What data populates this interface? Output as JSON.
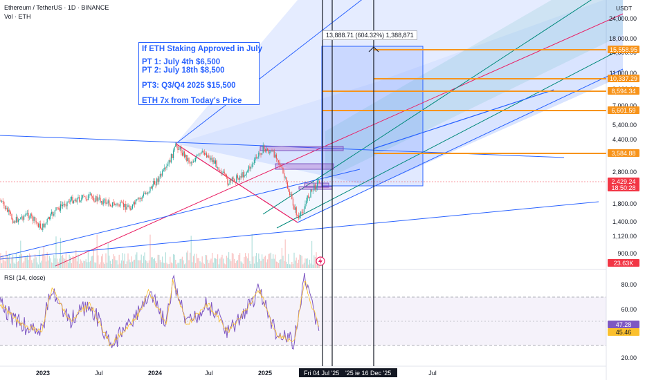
{
  "header": {
    "symbol": "Ethereum / TetherUS · 1D · BINANCE",
    "volume_label": "Vol · ETH",
    "currency": "USDT"
  },
  "annotation": {
    "line1": "If ETH Staking Approved in July",
    "line2": "PT 1: July 4th $6,500",
    "line3": "PT 2: July 18th $8,500",
    "line4": "PT3: Q3/Q4 2025 $15,500",
    "line5": "ETH 7x from Today's Price"
  },
  "measure_label": "13,888.71 (604.32%) 1,388,871",
  "price_axis": {
    "ticks": [
      "24,000.00",
      "18,000.00",
      "14,000.00",
      "11,000.00",
      "9,000.00",
      "7,000.00",
      "5,400.00",
      "4,400.00",
      "2,800.00",
      "1,800.00",
      "1,400.00",
      "1,120.00",
      "900.00"
    ],
    "tags": [
      {
        "value": "15,558.95",
        "color": "#f7931a"
      },
      {
        "value": "10,337.29",
        "color": "#f7931a"
      },
      {
        "value": "8,594.34",
        "color": "#f7931a"
      },
      {
        "value": "6,601.59",
        "color": "#f7931a"
      },
      {
        "value": "3,584.88",
        "color": "#f7931a"
      },
      {
        "value": "2,429.24",
        "color": "#f23645"
      },
      {
        "value": "18:50:28",
        "color": "#f23645"
      },
      {
        "value": "23.63K",
        "color": "#f23645"
      }
    ]
  },
  "rsi": {
    "label": "RSI (14, close)",
    "ticks": [
      "80.00",
      "60.00",
      "20.00"
    ],
    "tags": [
      {
        "value": "47.28",
        "color": "#7e57c2"
      },
      {
        "value": "45.46",
        "color": "#fbc02d"
      }
    ]
  },
  "time_axis": {
    "ticks": [
      "2023",
      "Jul",
      "2024",
      "Jul",
      "2025",
      "Jul"
    ],
    "cursor_labels": [
      "Fri 04 Jul '25",
      "'25",
      "ie 16 Dec '25"
    ]
  },
  "colors": {
    "up": "#26a69a",
    "down": "#ef5350",
    "channel": "#2962ff",
    "target": "#f7931a",
    "rsi": "#7e57c2",
    "rsi_ma": "#fbc02d"
  },
  "chart_data": {
    "type": "line",
    "symbol": "ETHUSDT",
    "timeframe": "1D",
    "x": [
      "2022-10",
      "2023-01",
      "2023-04",
      "2023-07",
      "2023-10",
      "2024-01",
      "2024-03",
      "2024-06",
      "2024-08",
      "2024-11",
      "2024-12",
      "2025-02",
      "2025-04",
      "2025-05",
      "2025-06"
    ],
    "series": [
      {
        "values": [
          1300,
          1500,
          1900,
          1880,
          1600,
          2300,
          3900,
          3600,
          2500,
          3100,
          3900,
          2700,
          1500,
          2400,
          2429
        ]
      }
    ],
    "rsi": [
      50,
      55,
      62,
      45,
      58,
      70,
      85,
      40,
      35,
      75,
      68,
      38,
      25,
      85,
      47
    ],
    "price_targets": [
      6500,
      8500,
      15500
    ],
    "last_price": 2429.24,
    "log_scale": true
  }
}
